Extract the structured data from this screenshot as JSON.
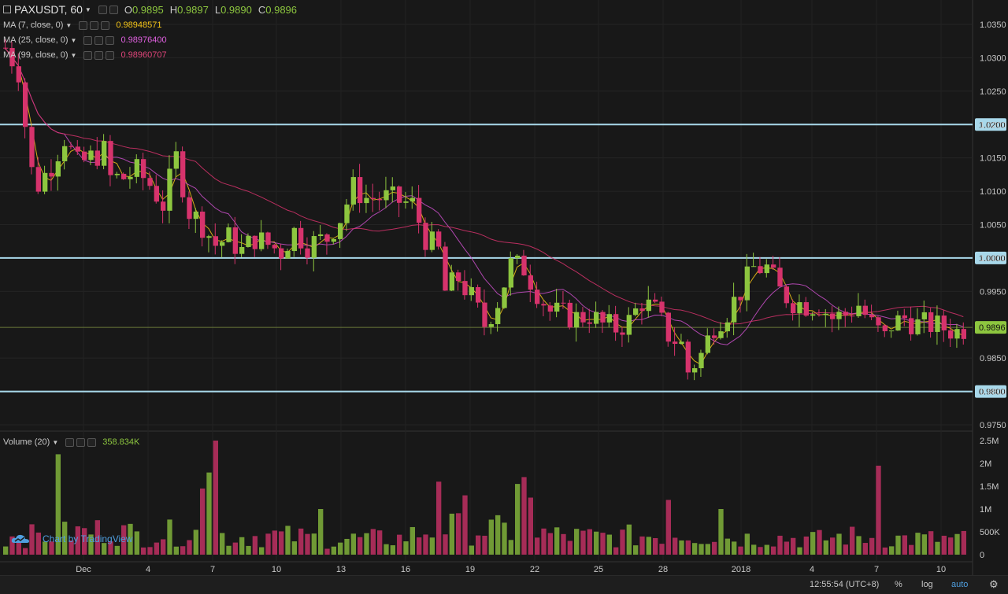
{
  "header": {
    "symbol": "PAXUSDT, 60",
    "o_label": "O",
    "o_value": "0.9895",
    "h_label": "H",
    "h_value": "0.9897",
    "l_label": "L",
    "l_value": "0.9890",
    "c_label": "C",
    "c_value": "0.9896"
  },
  "indicators": [
    {
      "label": "MA (7, close, 0)",
      "value": "0.98948571",
      "color": "#f5c518"
    },
    {
      "label": "MA (25, close, 0)",
      "value": "0.98976400",
      "color": "#c94fc9"
    },
    {
      "label": "MA (99, close, 0)",
      "value": "0.98960707",
      "color": "#d6336c"
    }
  ],
  "volume_legend": {
    "label": "Volume (20)",
    "value": "358.834K",
    "color": "#8dc63f"
  },
  "price_axis": {
    "ticks": [
      "1.0350",
      "1.0300",
      "1.0250",
      "1.0200",
      "1.0150",
      "1.0100",
      "1.0050",
      "1.0000",
      "0.9950",
      "0.9896",
      "0.9850",
      "0.9800",
      "0.9750"
    ],
    "horizontal_lines": [
      {
        "value": 1.02,
        "label": "1.0200"
      },
      {
        "value": 1.0,
        "label": "1.0000"
      },
      {
        "value": 0.98,
        "label": "0.9800"
      }
    ],
    "last_price": {
      "value": 0.9896,
      "label": "0.9896"
    }
  },
  "volume_axis": {
    "ticks": [
      "2.5M",
      "2M",
      "1.5M",
      "1M",
      "500K",
      "0"
    ]
  },
  "time_axis": {
    "ticks": [
      "Dec",
      "4",
      "7",
      "10",
      "13",
      "16",
      "19",
      "22",
      "25",
      "28",
      "2018",
      "4",
      "7",
      "10"
    ]
  },
  "branding": {
    "text": "Chart by TradingView"
  },
  "bottom_bar": {
    "time": "12:55:54 (UTC+8)",
    "percent": "%",
    "log": "log",
    "auto": "auto"
  },
  "colors": {
    "up": "#8dc63f",
    "down": "#d6336c",
    "line": "#a8d8ea",
    "background": "#181818"
  },
  "chart_data": {
    "type": "candlestick",
    "price_ylim": [
      0.9735,
      1.037
    ],
    "volume_ylim": [
      0,
      2500000
    ],
    "price_path": [
      [
        0,
        1.0315
      ],
      [
        2,
        1.028
      ],
      [
        3,
        1.02
      ],
      [
        4,
        1.013
      ],
      [
        5,
        1.011
      ],
      [
        7,
        1.014
      ],
      [
        9,
        1.018
      ],
      [
        11,
        1.014
      ],
      [
        13,
        1.015
      ],
      [
        15,
        1.016
      ],
      [
        16,
        1.012
      ],
      [
        18,
        1.012
      ],
      [
        20,
        1.013
      ],
      [
        22,
        1.011
      ],
      [
        24,
        1.008
      ],
      [
        26,
        1.015
      ],
      [
        27,
        1.011
      ],
      [
        28,
        1.007
      ],
      [
        30,
        1.005
      ],
      [
        32,
        1.002
      ],
      [
        34,
        1.003
      ],
      [
        36,
        1.001
      ],
      [
        38,
        1.003
      ],
      [
        40,
        1.002
      ],
      [
        42,
        1.001
      ],
      [
        44,
        1.004
      ],
      [
        46,
        1.002
      ],
      [
        49,
        1.003
      ],
      [
        51,
        1.006
      ],
      [
        53,
        1.0105
      ],
      [
        55,
        1.009
      ],
      [
        58,
        1.009
      ],
      [
        60,
        1.0085
      ],
      [
        62,
        1.008
      ],
      [
        64,
        1.003
      ],
      [
        66,
        1.001
      ],
      [
        67,
        0.995
      ],
      [
        69,
        0.997
      ],
      [
        71,
        0.994
      ],
      [
        73,
        0.99
      ],
      [
        75,
        0.9935
      ],
      [
        77,
        0.999
      ],
      [
        79,
        0.9985
      ],
      [
        81,
        0.995
      ],
      [
        83,
        0.992
      ],
      [
        85,
        0.9915
      ],
      [
        87,
        0.991
      ],
      [
        89,
        0.9915
      ],
      [
        91,
        0.99
      ],
      [
        93,
        0.9895
      ],
      [
        95,
        0.9905
      ],
      [
        97,
        0.9935
      ],
      [
        99,
        0.992
      ],
      [
        101,
        0.9885
      ],
      [
        103,
        0.987
      ],
      [
        104,
        0.983
      ],
      [
        106,
        0.9855
      ],
      [
        108,
        0.99
      ],
      [
        110,
        0.992
      ],
      [
        112,
        0.995
      ],
      [
        114,
        0.9985
      ],
      [
        116,
        0.9985
      ],
      [
        118,
        0.995
      ],
      [
        120,
        0.9935
      ],
      [
        122,
        0.993
      ],
      [
        124,
        0.993
      ],
      [
        126,
        0.991
      ],
      [
        128,
        0.9915
      ],
      [
        130,
        0.993
      ],
      [
        132,
        0.99
      ],
      [
        134,
        0.988
      ],
      [
        135,
        0.99
      ],
      [
        137,
        0.991
      ],
      [
        139,
        0.99
      ],
      [
        141,
        0.99
      ],
      [
        143,
        0.9895
      ],
      [
        145,
        0.989
      ],
      [
        146,
        0.9895
      ]
    ],
    "volume_profile": [
      [
        0,
        450000
      ],
      [
        6,
        500000
      ],
      [
        10,
        550000
      ],
      [
        16,
        650000
      ],
      [
        20,
        500000
      ],
      [
        30,
        600000
      ],
      [
        34,
        450000
      ],
      [
        40,
        500000
      ],
      [
        50,
        400000
      ],
      [
        60,
        420000
      ],
      [
        66,
        700000
      ],
      [
        72,
        650000
      ],
      [
        78,
        600000
      ],
      [
        84,
        500000
      ],
      [
        90,
        450000
      ],
      [
        96,
        480000
      ],
      [
        104,
        550000
      ],
      [
        110,
        420000
      ],
      [
        116,
        450000
      ],
      [
        124,
        400000
      ],
      [
        128,
        480000
      ],
      [
        134,
        420000
      ],
      [
        146,
        400000
      ]
    ],
    "volume_spikes": [
      [
        8,
        2200000
      ],
      [
        30,
        1450000
      ],
      [
        31,
        1800000
      ],
      [
        32,
        2500000
      ],
      [
        48,
        1000000
      ],
      [
        66,
        1600000
      ],
      [
        70,
        1300000
      ],
      [
        78,
        1550000
      ],
      [
        79,
        1700000
      ],
      [
        80,
        1250000
      ],
      [
        101,
        1200000
      ],
      [
        109,
        1000000
      ],
      [
        133,
        1950000
      ]
    ]
  }
}
